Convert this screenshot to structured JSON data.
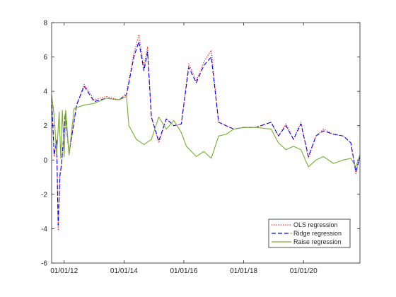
{
  "chart_data": {
    "type": "line",
    "title": "",
    "xlabel": "",
    "ylabel": "",
    "xlim": [
      "2011-08-01",
      "2021-11-20"
    ],
    "ylim": [
      -6,
      8
    ],
    "yticks": [
      -6,
      -4,
      -2,
      0,
      2,
      4,
      6,
      8
    ],
    "xticks": [
      {
        "date": "2012-01-01",
        "label": "01/01/12"
      },
      {
        "date": "2014-01-01",
        "label": "01/01/14"
      },
      {
        "date": "2016-01-01",
        "label": "01/01/16"
      },
      {
        "date": "2018-01-01",
        "label": "01/01/18"
      },
      {
        "date": "2020-01-01",
        "label": "01/01/20"
      }
    ],
    "grid": false,
    "legend_position": "bottom-right",
    "series": [
      {
        "name": "OLS regression",
        "color": "#ff0000",
        "style": "dotted",
        "points": [
          [
            "2011-08-01",
            3.6
          ],
          [
            "2011-09-01",
            0.2
          ],
          [
            "2011-10-01",
            1.2
          ],
          [
            "2011-10-20",
            -4.1
          ],
          [
            "2011-11-10",
            -1.0
          ],
          [
            "2011-12-01",
            -0.3
          ],
          [
            "2012-01-15",
            2.8
          ],
          [
            "2012-03-01",
            0.3
          ],
          [
            "2012-06-01",
            3.2
          ],
          [
            "2012-09-01",
            4.4
          ],
          [
            "2013-01-01",
            3.5
          ],
          [
            "2013-06-01",
            3.7
          ],
          [
            "2013-11-01",
            3.5
          ],
          [
            "2014-02-01",
            3.9
          ],
          [
            "2014-05-01",
            6.2
          ],
          [
            "2014-07-01",
            7.3
          ],
          [
            "2014-09-01",
            5.4
          ],
          [
            "2014-10-15",
            6.6
          ],
          [
            "2014-12-01",
            2.5
          ],
          [
            "2015-03-01",
            1.0
          ],
          [
            "2015-06-01",
            2.4
          ],
          [
            "2015-09-01",
            2.0
          ],
          [
            "2015-12-01",
            2.1
          ],
          [
            "2016-03-01",
            5.6
          ],
          [
            "2016-06-01",
            4.6
          ],
          [
            "2016-09-01",
            5.7
          ],
          [
            "2016-12-01",
            6.4
          ],
          [
            "2017-03-01",
            2.2
          ],
          [
            "2017-06-01",
            2.0
          ],
          [
            "2017-09-01",
            1.8
          ],
          [
            "2018-01-01",
            1.9
          ],
          [
            "2018-06-01",
            1.9
          ],
          [
            "2018-12-01",
            2.2
          ],
          [
            "2019-03-01",
            1.4
          ],
          [
            "2019-06-01",
            2.1
          ],
          [
            "2019-09-01",
            1.2
          ],
          [
            "2019-12-01",
            2.2
          ],
          [
            "2020-03-01",
            0.1
          ],
          [
            "2020-06-01",
            1.4
          ],
          [
            "2020-09-01",
            1.8
          ],
          [
            "2021-01-01",
            1.5
          ],
          [
            "2021-05-01",
            1.4
          ],
          [
            "2021-08-01",
            1.0
          ],
          [
            "2021-10-01",
            -0.8
          ],
          [
            "2021-11-20",
            0.2
          ]
        ]
      },
      {
        "name": "Ridge regression",
        "color": "#0000ff",
        "style": "dashed",
        "points": [
          [
            "2011-08-01",
            3.6
          ],
          [
            "2011-09-01",
            0.3
          ],
          [
            "2011-10-01",
            1.1
          ],
          [
            "2011-10-20",
            -3.8
          ],
          [
            "2011-11-10",
            -0.9
          ],
          [
            "2011-12-01",
            -0.2
          ],
          [
            "2012-01-15",
            2.7
          ],
          [
            "2012-03-01",
            0.4
          ],
          [
            "2012-06-01",
            3.2
          ],
          [
            "2012-09-01",
            4.3
          ],
          [
            "2013-01-01",
            3.4
          ],
          [
            "2013-06-01",
            3.6
          ],
          [
            "2013-11-01",
            3.5
          ],
          [
            "2014-02-01",
            3.8
          ],
          [
            "2014-05-01",
            6.0
          ],
          [
            "2014-07-01",
            6.9
          ],
          [
            "2014-09-01",
            5.2
          ],
          [
            "2014-10-15",
            6.3
          ],
          [
            "2014-12-01",
            2.5
          ],
          [
            "2015-03-01",
            1.1
          ],
          [
            "2015-06-01",
            2.4
          ],
          [
            "2015-09-01",
            2.0
          ],
          [
            "2015-12-01",
            2.1
          ],
          [
            "2016-03-01",
            5.4
          ],
          [
            "2016-06-01",
            4.5
          ],
          [
            "2016-09-01",
            5.5
          ],
          [
            "2016-12-01",
            6.0
          ],
          [
            "2017-03-01",
            2.2
          ],
          [
            "2017-06-01",
            2.0
          ],
          [
            "2017-09-01",
            1.8
          ],
          [
            "2018-01-01",
            1.9
          ],
          [
            "2018-06-01",
            1.9
          ],
          [
            "2018-12-01",
            2.2
          ],
          [
            "2019-03-01",
            1.4
          ],
          [
            "2019-06-01",
            2.0
          ],
          [
            "2019-09-01",
            1.2
          ],
          [
            "2019-12-01",
            2.1
          ],
          [
            "2020-03-01",
            0.2
          ],
          [
            "2020-06-01",
            1.4
          ],
          [
            "2020-09-01",
            1.7
          ],
          [
            "2021-01-01",
            1.5
          ],
          [
            "2021-05-01",
            1.4
          ],
          [
            "2021-08-01",
            1.0
          ],
          [
            "2021-10-01",
            -0.7
          ],
          [
            "2021-11-20",
            0.2
          ]
        ]
      },
      {
        "name": "Raise regression",
        "color": "#77ac30",
        "style": "solid",
        "points": [
          [
            "2011-08-01",
            3.8
          ],
          [
            "2011-09-01",
            2.6
          ],
          [
            "2011-10-01",
            0.3
          ],
          [
            "2011-11-01",
            2.8
          ],
          [
            "2011-11-20",
            0.1
          ],
          [
            "2011-12-10",
            2.9
          ],
          [
            "2012-01-01",
            0.2
          ],
          [
            "2012-01-20",
            2.9
          ],
          [
            "2012-03-01",
            0.3
          ],
          [
            "2012-05-01",
            3.0
          ],
          [
            "2012-09-01",
            3.2
          ],
          [
            "2013-01-01",
            3.3
          ],
          [
            "2013-06-01",
            3.6
          ],
          [
            "2013-11-01",
            3.5
          ],
          [
            "2014-02-01",
            3.7
          ],
          [
            "2014-03-01",
            2.0
          ],
          [
            "2014-06-01",
            1.2
          ],
          [
            "2014-09-01",
            0.9
          ],
          [
            "2014-12-01",
            1.2
          ],
          [
            "2015-03-01",
            2.5
          ],
          [
            "2015-06-01",
            1.8
          ],
          [
            "2015-09-01",
            2.3
          ],
          [
            "2015-12-01",
            1.6
          ],
          [
            "2016-02-01",
            0.8
          ],
          [
            "2016-06-01",
            0.2
          ],
          [
            "2016-09-01",
            0.5
          ],
          [
            "2016-12-01",
            0.1
          ],
          [
            "2017-03-01",
            1.4
          ],
          [
            "2017-06-01",
            1.5
          ],
          [
            "2017-09-01",
            1.8
          ],
          [
            "2018-01-01",
            1.9
          ],
          [
            "2018-06-01",
            1.9
          ],
          [
            "2018-12-01",
            1.8
          ],
          [
            "2019-03-01",
            1.0
          ],
          [
            "2019-06-01",
            0.6
          ],
          [
            "2019-09-01",
            0.8
          ],
          [
            "2019-12-01",
            0.6
          ],
          [
            "2020-03-01",
            -0.4
          ],
          [
            "2020-06-01",
            0.0
          ],
          [
            "2020-09-01",
            0.2
          ],
          [
            "2021-01-01",
            -0.2
          ],
          [
            "2021-05-01",
            0.0
          ],
          [
            "2021-08-01",
            0.1
          ],
          [
            "2021-10-01",
            -0.4
          ],
          [
            "2021-11-20",
            0.3
          ]
        ]
      }
    ]
  }
}
